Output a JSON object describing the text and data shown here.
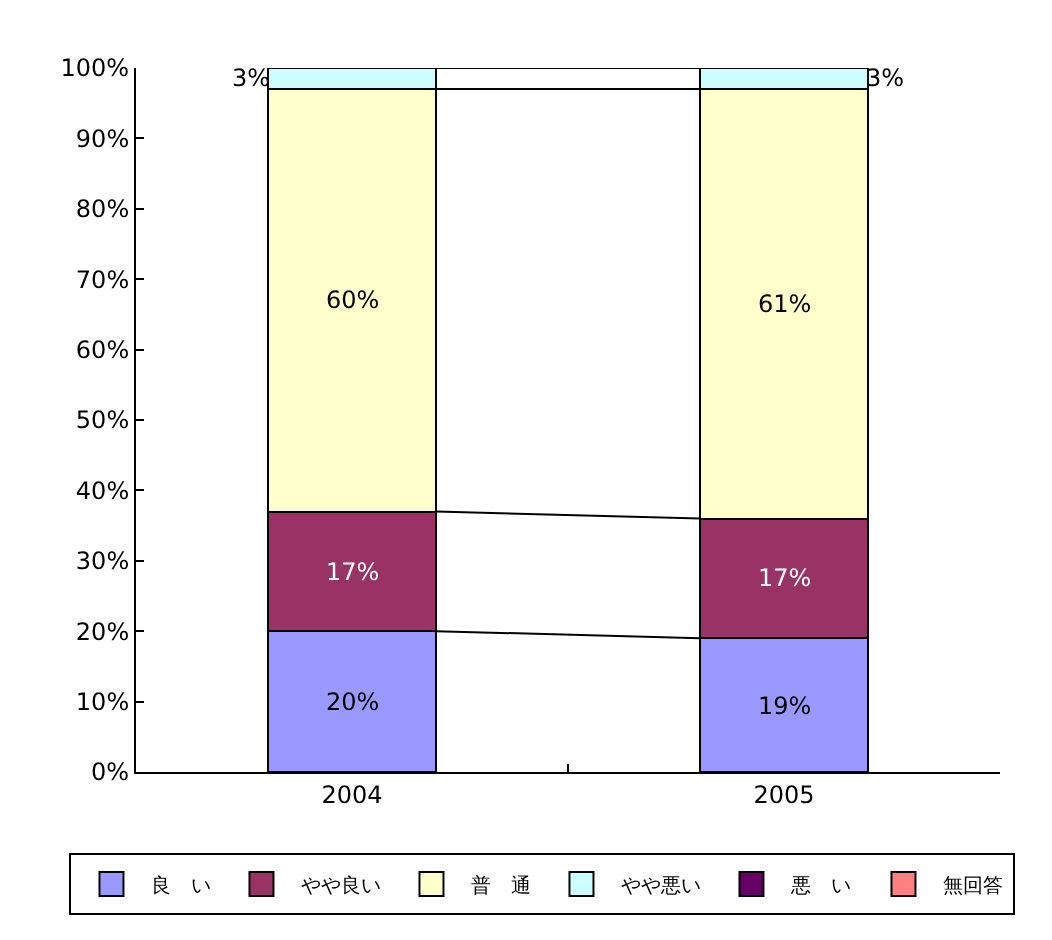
{
  "chart_data": {
    "type": "bar",
    "stacked": true,
    "categories": [
      "2004",
      "2005"
    ],
    "series": [
      {
        "name": "良　い",
        "color": "#9999ff",
        "values": [
          20,
          19
        ],
        "value_labels": [
          "20%",
          "19%"
        ]
      },
      {
        "name": "やや良い",
        "color": "#993366",
        "values": [
          17,
          17
        ],
        "value_labels": [
          "17%",
          "17%"
        ]
      },
      {
        "name": "普　通",
        "color": "#ffffcc",
        "values": [
          60,
          61
        ],
        "value_labels": [
          "60%",
          "61%"
        ]
      },
      {
        "name": "やや悪い",
        "color": "#ccffff",
        "values": [
          3,
          3
        ],
        "value_labels": [
          "3%",
          "3%"
        ]
      },
      {
        "name": "悪　い",
        "color": "#660066",
        "values": [
          null,
          null
        ]
      },
      {
        "name": "無回答",
        "color": "#ff8080",
        "values": [
          null,
          null
        ]
      }
    ],
    "ylim": [
      0,
      100
    ],
    "yticks": [
      {
        "value": 0,
        "label": "0%"
      },
      {
        "value": 10,
        "label": "10%"
      },
      {
        "value": 20,
        "label": "20%"
      },
      {
        "value": 30,
        "label": "30%"
      },
      {
        "value": 40,
        "label": "40%"
      },
      {
        "value": 50,
        "label": "50%"
      },
      {
        "value": 60,
        "label": "60%"
      },
      {
        "value": 70,
        "label": "70%"
      },
      {
        "value": 80,
        "label": "80%"
      },
      {
        "value": 90,
        "label": "90%"
      },
      {
        "value": 100,
        "label": "100%"
      }
    ],
    "legend": "bottom"
  }
}
